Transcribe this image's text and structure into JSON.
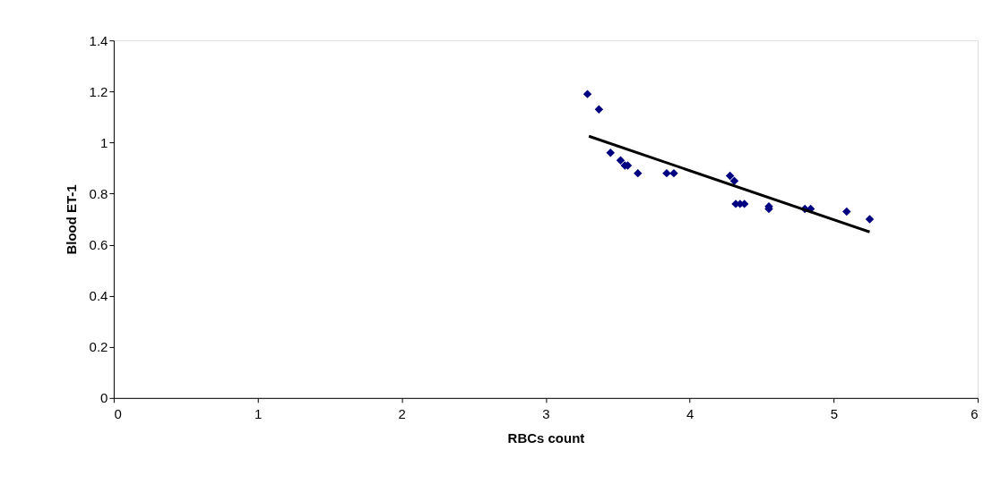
{
  "chart_data": {
    "type": "scatter",
    "xlabel": "RBCs count",
    "ylabel": "Blood ET-1",
    "xlim": [
      0,
      6
    ],
    "xticks": [
      0,
      1,
      2,
      3,
      4,
      5,
      6
    ],
    "ylim": [
      0,
      1.4
    ],
    "yticks": [
      0,
      0.2,
      0.4,
      0.6,
      0.8,
      1,
      1.2,
      1.4
    ],
    "grid": false,
    "series": [
      {
        "marker": "diamond",
        "color": "#000080",
        "x": [
          3.29,
          3.37,
          3.45,
          3.52,
          3.55,
          3.57,
          3.64,
          3.84,
          3.89,
          4.28,
          4.31,
          4.32,
          4.35,
          4.38,
          4.55,
          4.55,
          4.8,
          4.84,
          5.09,
          5.25
        ],
        "values": [
          1.19,
          1.13,
          0.96,
          0.93,
          0.91,
          0.91,
          0.88,
          0.88,
          0.88,
          0.87,
          0.85,
          0.76,
          0.76,
          0.76,
          0.75,
          0.74,
          0.74,
          0.74,
          0.73,
          0.7
        ]
      },
      {
        "type": "line",
        "marker": "none",
        "color": "#000000",
        "x": [
          3.3,
          5.25
        ],
        "values": [
          1.025,
          0.65
        ]
      }
    ]
  }
}
